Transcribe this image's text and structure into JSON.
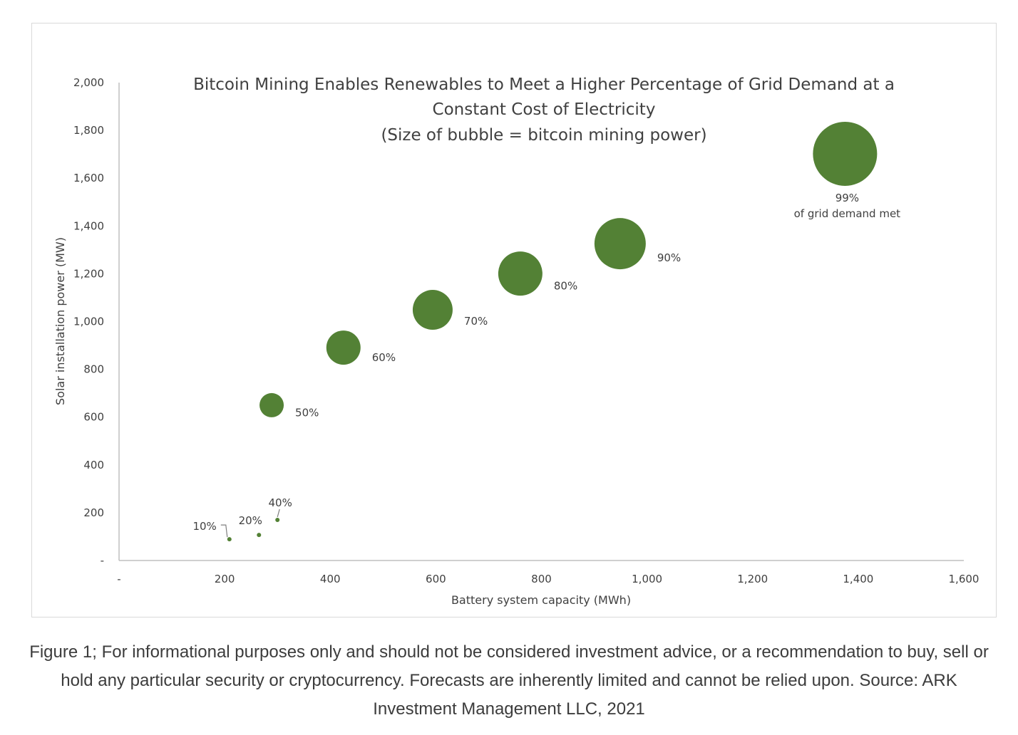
{
  "chart_data": {
    "type": "scatter",
    "subtype": "bubble",
    "title_lines": [
      "Bitcoin Mining Enables Renewables to Meet a Higher Percentage of Grid Demand at a",
      "Constant Cost of Electricity",
      "(Size of bubble = bitcoin mining power)"
    ],
    "xlabel": "Battery system capacity (MWh)",
    "ylabel": "Solar installation power  (MW)",
    "xlim": [
      0,
      1600
    ],
    "ylim": [
      0,
      2000
    ],
    "x_ticks": [
      {
        "value": 0,
        "label": "-"
      },
      {
        "value": 200,
        "label": "200"
      },
      {
        "value": 400,
        "label": "400"
      },
      {
        "value": 600,
        "label": "600"
      },
      {
        "value": 800,
        "label": "800"
      },
      {
        "value": 1000,
        "label": "1,000"
      },
      {
        "value": 1200,
        "label": "1,200"
      },
      {
        "value": 1400,
        "label": "1,400"
      },
      {
        "value": 1600,
        "label": "1,600"
      }
    ],
    "y_ticks": [
      {
        "value": 0,
        "label": "-"
      },
      {
        "value": 200,
        "label": "200"
      },
      {
        "value": 400,
        "label": "400"
      },
      {
        "value": 600,
        "label": "600"
      },
      {
        "value": 800,
        "label": "800"
      },
      {
        "value": 1000,
        "label": "1,000"
      },
      {
        "value": 1200,
        "label": "1,200"
      },
      {
        "value": 1400,
        "label": "1,400"
      },
      {
        "value": 1600,
        "label": "1,600"
      },
      {
        "value": 1800,
        "label": "1,800"
      },
      {
        "value": 2000,
        "label": "2,000"
      }
    ],
    "grid": false,
    "bubble_color": "#538135",
    "points": [
      {
        "label": "10%",
        "x": 209,
        "y": 89,
        "size": 3
      },
      {
        "label": "20%",
        "x": 265,
        "y": 107,
        "size": 3
      },
      {
        "label": "40%",
        "x": 300,
        "y": 170,
        "size": 3
      },
      {
        "label": "50%",
        "x": 289,
        "y": 650,
        "size": 17
      },
      {
        "label": "60%",
        "x": 425,
        "y": 891,
        "size": 24
      },
      {
        "label": "70%",
        "x": 594,
        "y": 1049,
        "size": 28
      },
      {
        "label": "80%",
        "x": 760,
        "y": 1201,
        "size": 31
      },
      {
        "label": "90%",
        "x": 949,
        "y": 1326,
        "size": 36
      },
      {
        "label": "99%",
        "x": 1375,
        "y": 1702,
        "size": 45,
        "sublabel": "of grid demand met"
      }
    ]
  },
  "caption": "Figure 1; For informational purposes only and should not be considered investment advice, or a recommendation to buy, sell or hold any particular security or cryptocurrency. Forecasts are inherently limited and cannot be relied upon. Source: ARK Investment Management LLC, 2021"
}
